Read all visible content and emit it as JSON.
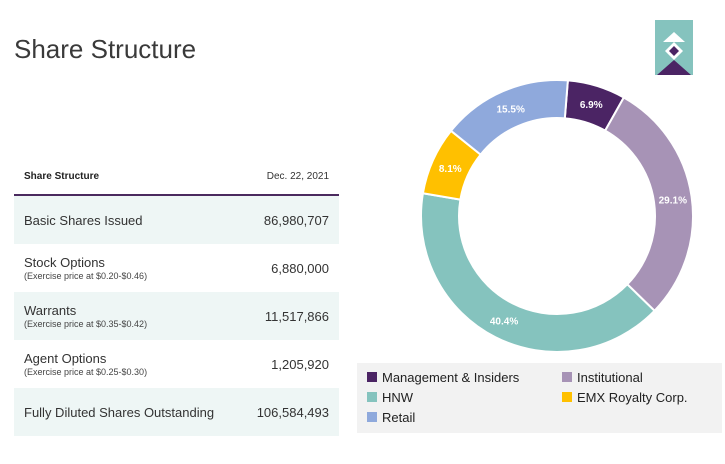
{
  "page": {
    "title": "Share Structure"
  },
  "table": {
    "header_label": "Share Structure",
    "header_date": "Dec. 22, 2021",
    "rows": [
      {
        "label": "Basic Shares Issued",
        "sub": "",
        "value": "86,980,707"
      },
      {
        "label": "Stock Options",
        "sub": "(Exercise price at $0.20-$0.46)",
        "value": "6,880,000"
      },
      {
        "label": "Warrants",
        "sub": "(Exercise price at $0.35-$0.42)",
        "value": "11,517,866"
      },
      {
        "label": "Agent Options",
        "sub": "(Exercise price at $0.25-$0.30)",
        "value": "1,205,920"
      },
      {
        "label": "Fully Diluted Shares Outstanding",
        "sub": "",
        "value": "106,584,493"
      }
    ]
  },
  "colors": {
    "accent": "#4a2a5e",
    "table_shade": "#eef6f5"
  },
  "chart_data": {
    "type": "pie",
    "donut": true,
    "slices": [
      {
        "name": "Management & Insiders",
        "value": 6.9,
        "label": "6.9%",
        "color": "#4b2464"
      },
      {
        "name": "Institutional",
        "value": 29.1,
        "label": "29.1%",
        "color": "#a793b6"
      },
      {
        "name": "HNW",
        "value": 40.4,
        "label": "40.4%",
        "color": "#85c3be"
      },
      {
        "name": "EMX Royalty Corp.",
        "value": 8.1,
        "label": "8.1%",
        "color": "#ffc000"
      },
      {
        "name": "Retail",
        "value": 15.5,
        "label": "15.5%",
        "color": "#8fa9dc"
      }
    ],
    "legend_position": "bottom"
  }
}
